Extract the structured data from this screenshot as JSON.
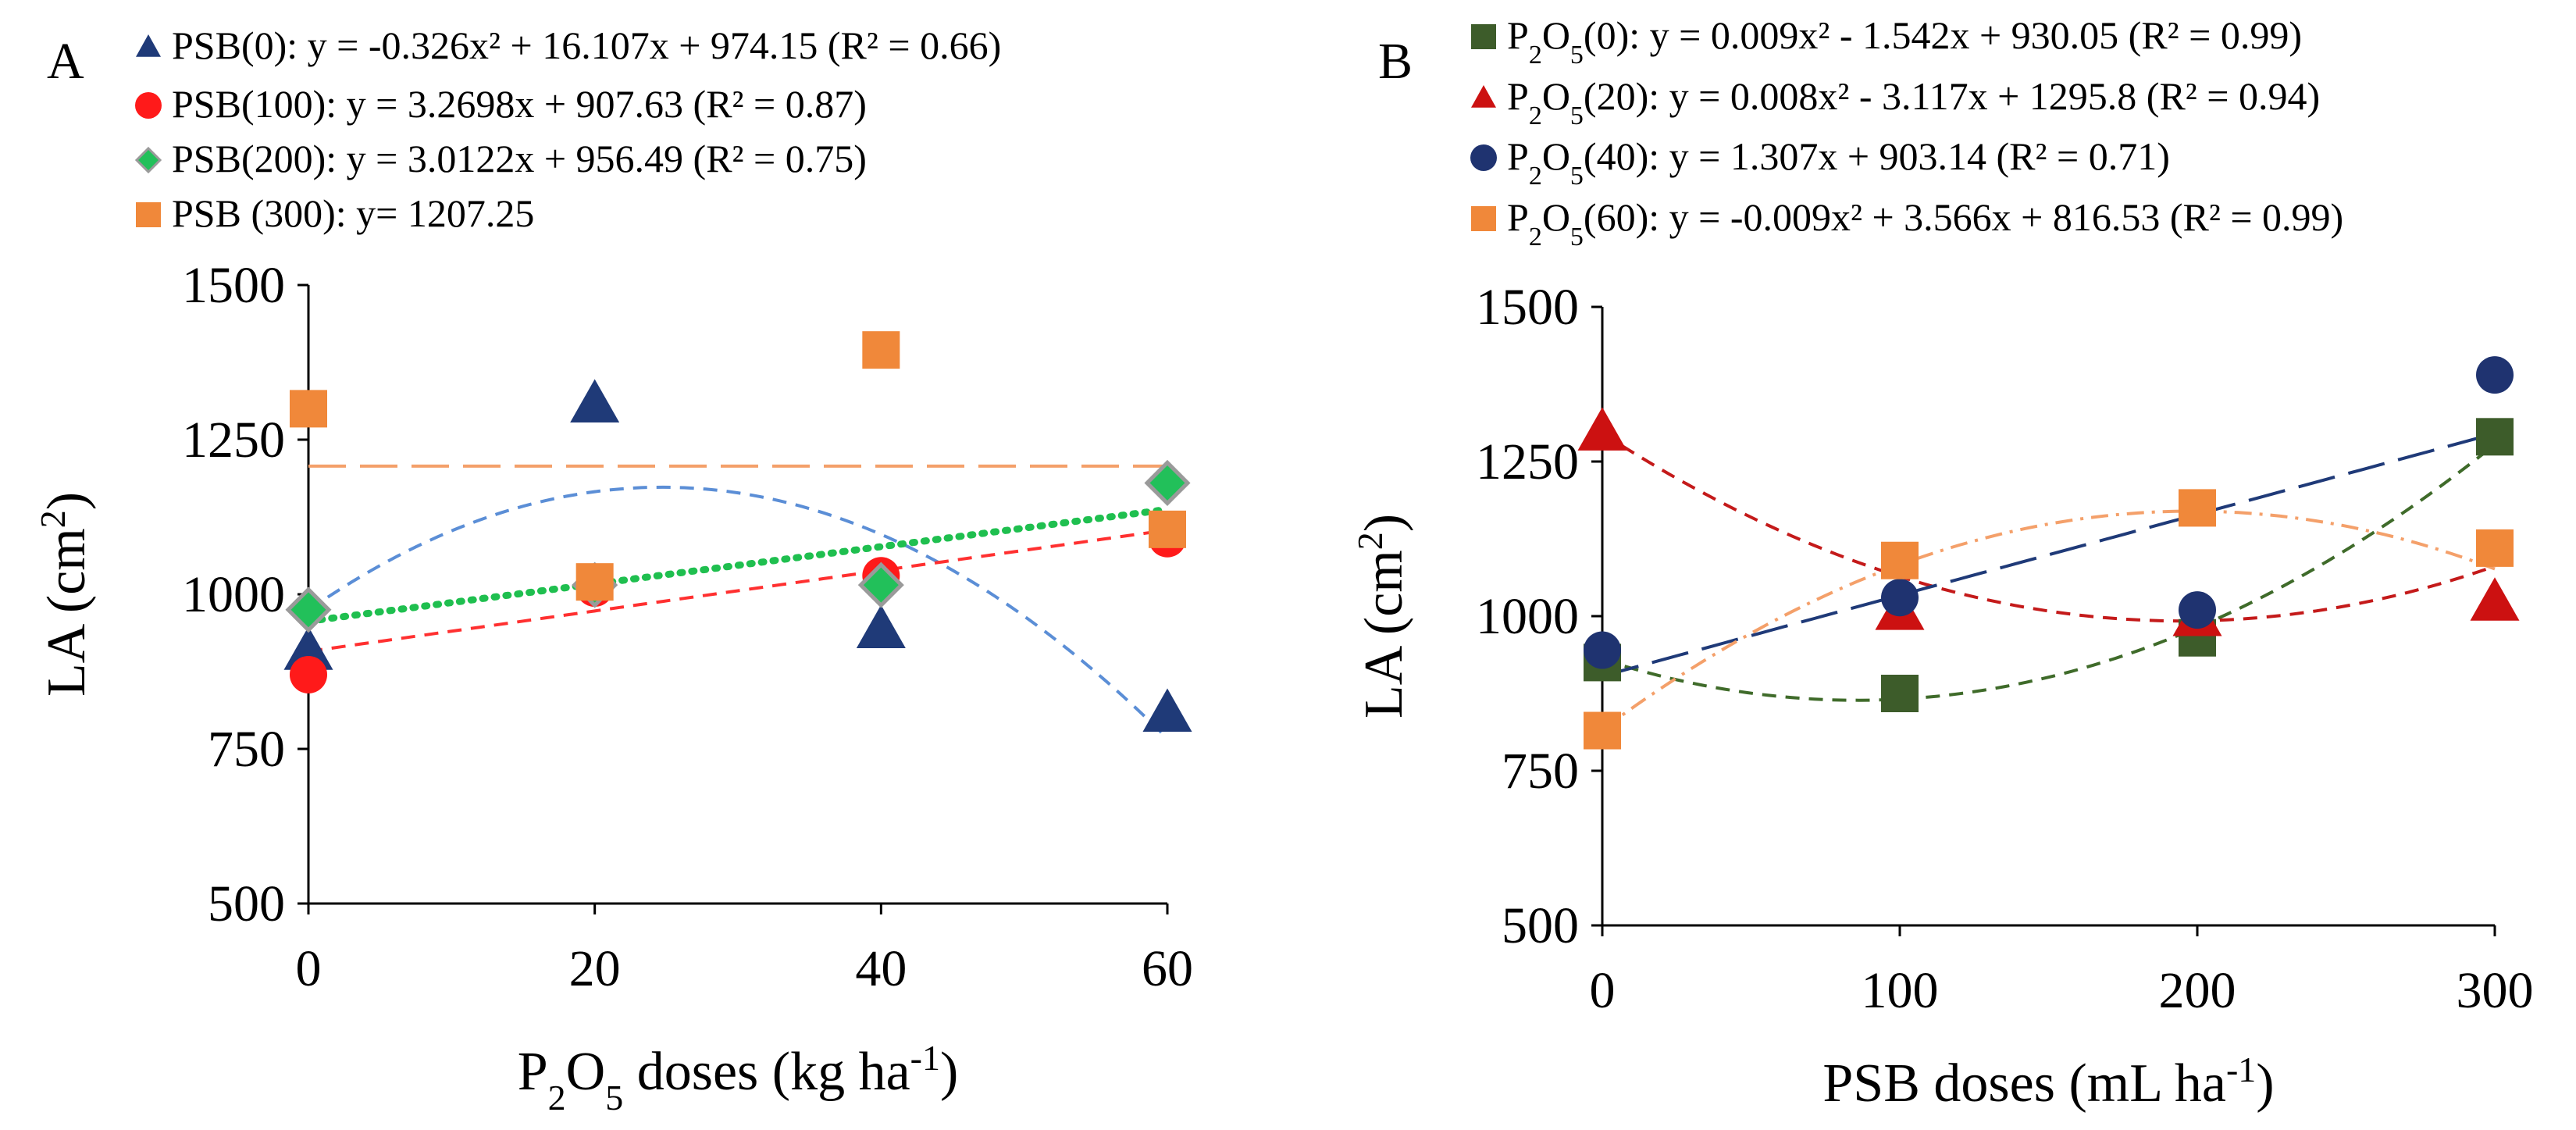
{
  "chart_data": [
    {
      "panel": "A",
      "type": "scatter",
      "xlabel": "P₂O₅ doses (kg ha⁻¹)",
      "xlabel_parts": {
        "pre": "P",
        "sub": "2",
        "mid": "O",
        "sub2": "5",
        "post": " doses (kg ha",
        "sup": "-1",
        "end": ")"
      },
      "ylabel": "LA (cm²)",
      "ylabel_parts": {
        "pre": "LA  (cm",
        "sup": "2",
        "end": ")"
      },
      "x_ticks": [
        0,
        20,
        40,
        60
      ],
      "xlim": [
        0,
        60
      ],
      "y_ticks": [
        500,
        750,
        1000,
        1250,
        1500
      ],
      "ylim": [
        500,
        1500
      ],
      "series": [
        {
          "name": "PSB(0)",
          "legend": "PSB(0): y = -0.326x² + 16.107x + 974.15 (R² = 0.66)",
          "marker": "triangle",
          "color": "#1f3a78",
          "line_color": "#5b8ed6",
          "line_style": "dashed",
          "fit": {
            "kind": "poly",
            "coef": [
              974.15,
              16.107,
              -0.326
            ]
          },
          "x": [
            0,
            20,
            40,
            60
          ],
          "y": [
            910,
            1310,
            945,
            810
          ]
        },
        {
          "name": "PSB(100)",
          "legend": "PSB(100): y = 3.2698x + 907.63 (R² = 0.87)",
          "marker": "circle",
          "color": "#ff1a1a",
          "line_color": "#ff3030",
          "line_style": "dashed",
          "fit": {
            "kind": "poly",
            "coef": [
              907.63,
              3.2698
            ]
          },
          "x": [
            0,
            20,
            40,
            60
          ],
          "y": [
            870,
            1010,
            1030,
            1090
          ]
        },
        {
          "name": "PSB(200)",
          "legend": "PSB(200): y = 3.0122x + 956.49 (R² = 0.75)",
          "marker": "diamond",
          "color": "#22c05a",
          "line_color": "#1fbf4f",
          "line_style": "dotted",
          "fit": {
            "kind": "poly",
            "coef": [
              956.49,
              3.0122
            ]
          },
          "x": [
            0,
            20,
            40,
            60
          ],
          "y": [
            975,
            1015,
            1015,
            1180
          ]
        },
        {
          "name": "PSB (300)",
          "legend": "PSB (300): y= 1207.25",
          "marker": "square",
          "color": "#f0883a",
          "line_color": "#f4a06a",
          "line_style": "longdash",
          "fit": {
            "kind": "poly",
            "coef": [
              1207.25
            ]
          },
          "x": [
            0,
            20,
            40,
            60
          ],
          "y": [
            1300,
            1020,
            1395,
            1105
          ]
        }
      ]
    },
    {
      "panel": "B",
      "type": "scatter",
      "xlabel": "PSB doses (mL ha⁻¹)",
      "xlabel_parts": {
        "pre": "PSB doses (mL ha",
        "sup": "-1",
        "end": ")"
      },
      "ylabel": "LA (cm²)",
      "ylabel_parts": {
        "pre": "LA (cm",
        "sup": "2",
        "end": ")"
      },
      "x_ticks": [
        0,
        100,
        200,
        300
      ],
      "xlim": [
        0,
        300
      ],
      "y_ticks": [
        500,
        750,
        1000,
        1250,
        1500
      ],
      "ylim": [
        500,
        1500
      ],
      "series": [
        {
          "name": "P₂O₅(0)",
          "legend": "P₂O₅(0): y = 0.009x² - 1.542x + 930.05 (R² = 0.99)",
          "legend_eq": ": y = 0.009x² - 1.542x + 930.05 (R² = 0.99)",
          "legend_dose": "(0)",
          "marker": "square",
          "color": "#3d5c2a",
          "line_color": "#3f6b2a",
          "line_style": "dashed",
          "fit": {
            "kind": "poly",
            "coef": [
              930.05,
              -1.542,
              0.009
            ]
          },
          "x": [
            0,
            100,
            200,
            300
          ],
          "y": [
            925,
            875,
            965,
            1290
          ]
        },
        {
          "name": "P₂O₅(20)",
          "legend": "P₂O₅(20): y = 0.008x² - 3.117x + 1295.8 (R² = 0.94)",
          "legend_eq": ": y = 0.008x² - 3.117x + 1295.8 (R² = 0.94)",
          "legend_dose": "(20)",
          "marker": "triangle",
          "color": "#cc1111",
          "line_color": "#c41a1a",
          "line_style": "dashed",
          "fit": {
            "kind": "poly",
            "coef": [
              1295.8,
              -3.117,
              0.008
            ]
          },
          "x": [
            0,
            100,
            200,
            300
          ],
          "y": [
            1300,
            1010,
            1000,
            1025
          ]
        },
        {
          "name": "P₂O₅(40)",
          "legend": "P₂O₅(40): y = 1.307x + 903.14 (R² = 0.71)",
          "legend_eq": ": y = 1.307x + 903.14 (R² = 0.71)",
          "legend_dose": "(40)",
          "marker": "circle",
          "color": "#1f3370",
          "line_color": "#1f3a78",
          "line_style": "longdash",
          "fit": {
            "kind": "poly",
            "coef": [
              903.14,
              1.307
            ]
          },
          "x": [
            0,
            100,
            200,
            300
          ],
          "y": [
            945,
            1030,
            1010,
            1390
          ]
        },
        {
          "name": "P₂O₅(60)",
          "legend": "P₂O₅(60): y = -0.009x² + 3.566x + 816.53 (R² = 0.99)",
          "legend_eq": ": y = -0.009x² + 3.566x + 816.53 (R² = 0.99)",
          "legend_dose": "(60)",
          "marker": "square",
          "color": "#f0883a",
          "line_color": "#f4a06a",
          "line_style": "dashdot",
          "fit": {
            "kind": "poly",
            "coef": [
              816.53,
              3.566,
              -0.009
            ]
          },
          "x": [
            0,
            100,
            200,
            300
          ],
          "y": [
            815,
            1090,
            1175,
            1110
          ]
        }
      ]
    }
  ]
}
